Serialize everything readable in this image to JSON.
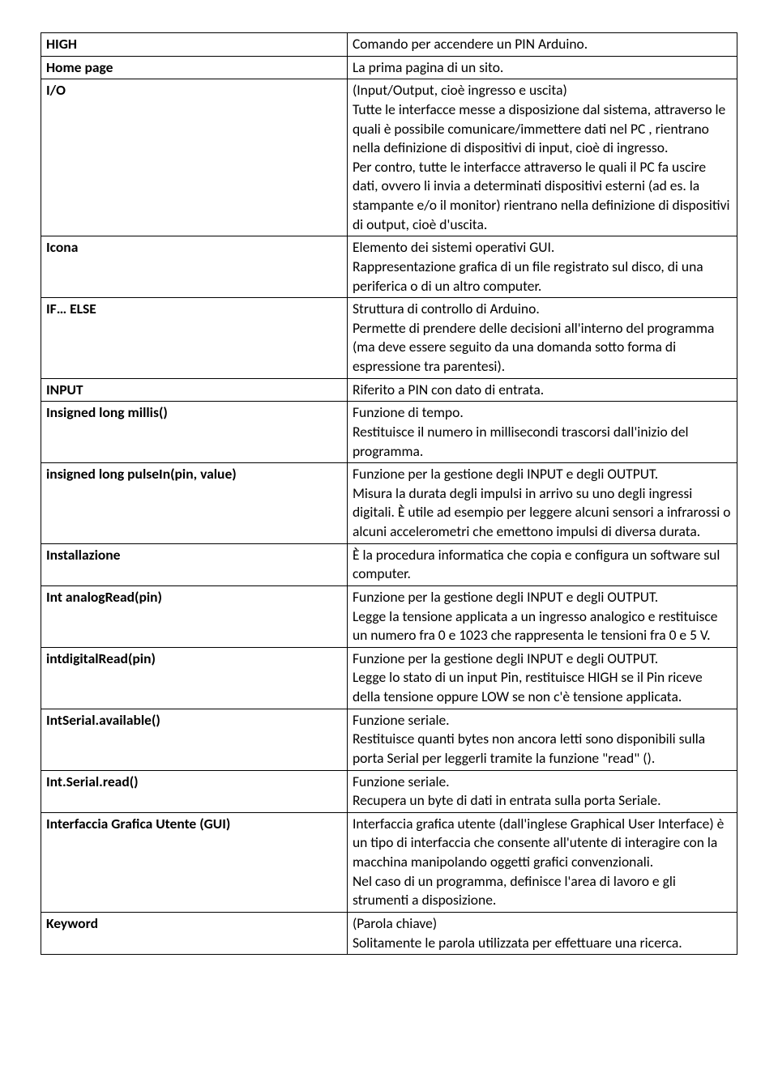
{
  "rows": [
    {
      "term": "HIGH",
      "definition": [
        "Comando per accendere un PIN Arduino."
      ]
    },
    {
      "term": "Home page",
      "definition": [
        "La prima pagina di un sito."
      ]
    },
    {
      "term": "I/O",
      "definition": [
        "(Input/Output, cioè ingresso e uscita)",
        "Tutte le interfacce messe a disposizione dal sistema, attraverso le quali è possibile comunicare/immettere dati nel PC , rientrano nella definizione di dispositivi di input, cioè di ingresso.",
        "Per contro, tutte le interfacce attraverso le quali il PC fa uscire dati, ovvero li invia a determinati dispositivi esterni (ad es. la stampante e/o il monitor) rientrano nella definizione di dispositivi di output, cioè d'uscita."
      ]
    },
    {
      "term": "Icona",
      "definition": [
        "Elemento dei sistemi operativi GUI.",
        "Rappresentazione grafica di un file registrato sul disco, di una periferica o di un altro computer."
      ]
    },
    {
      "term": "IF… ELSE",
      "definition": [
        "Struttura di controllo di Arduino.",
        "Permette di prendere delle decisioni all'interno del programma (ma deve essere seguito da una domanda sotto forma di espressione tra parentesi)."
      ]
    },
    {
      "term": "INPUT",
      "definition": [
        "Riferito a PIN con dato di entrata."
      ]
    },
    {
      "term": "Insigned long millis()",
      "definition": [
        "Funzione di tempo.",
        "Restituisce il numero in millisecondi trascorsi dall'inizio del programma."
      ]
    },
    {
      "term": "insigned long pulseIn(pin, value)",
      "definition": [
        "Funzione per la gestione degli INPUT e degli OUTPUT.",
        "Misura la durata degli impulsi in arrivo su uno degli ingressi digitali. È utile ad esempio per leggere alcuni sensori a infrarossi o alcuni accelerometri che emettono impulsi di diversa durata."
      ]
    },
    {
      "term": "Installazione",
      "definition": [
        "È la procedura informatica che copia e configura un software sul computer."
      ]
    },
    {
      "term": "Int analogRead(pin)",
      "definition": [
        "Funzione per la gestione degli INPUT e degli OUTPUT.",
        "Legge la tensione applicata a un ingresso analogico e restituisce un numero fra 0 e 1023 che rappresenta le tensioni fra 0 e 5 V."
      ]
    },
    {
      "term": "intdigitalRead(pin)",
      "definition": [
        "Funzione per la gestione degli INPUT e degli OUTPUT.",
        "Legge lo stato di un input Pin, restituisce HIGH se il Pin riceve della tensione oppure LOW se non c'è tensione applicata."
      ]
    },
    {
      "term": "IntSerial.available()",
      "definition": [
        "Funzione seriale.",
        "Restituisce quanti bytes non ancora letti sono disponibili sulla porta Serial per leggerli tramite la funzione \"read\" ()."
      ]
    },
    {
      "term": "Int.Serial.read()",
      "definition": [
        "Funzione seriale.",
        "Recupera un byte di dati in entrata sulla porta Seriale."
      ]
    },
    {
      "term": "Interfaccia Grafica Utente (GUI)",
      "definition": [
        "Interfaccia grafica utente (dall'inglese Graphical User Interface) è un tipo di interfaccia che consente all'utente di interagire con la macchina manipolando oggetti grafici convenzionali.",
        "Nel caso di un programma, definisce  l'area di lavoro e gli strumenti a disposizione."
      ]
    },
    {
      "term": "Keyword",
      "definition": [
        "(Parola chiave)",
        "Solitamente le parola utilizzata per effettuare una ricerca."
      ]
    }
  ]
}
